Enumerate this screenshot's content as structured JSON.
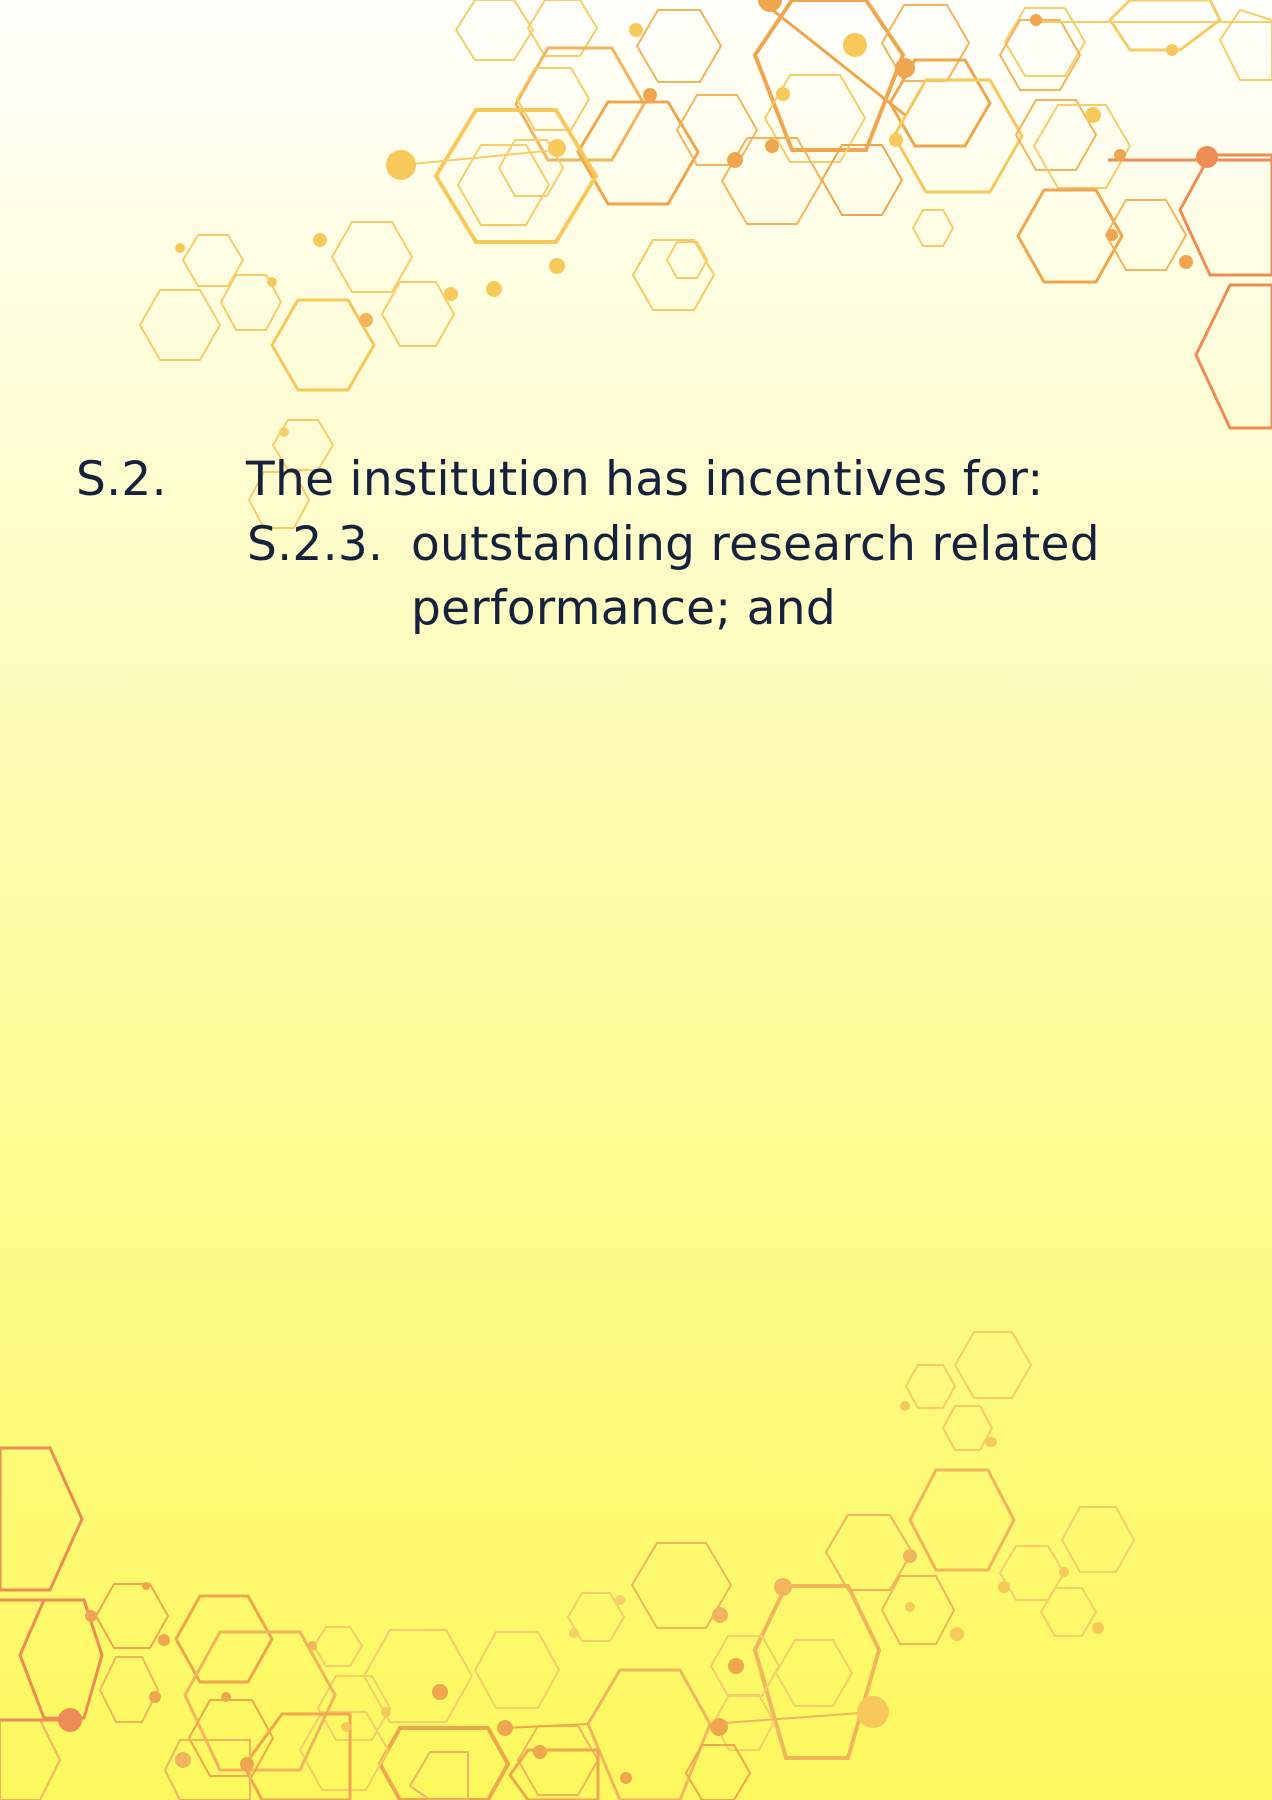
{
  "page": {
    "background_top": "#fffffb",
    "background_bottom": "#fef85e",
    "text_color": "#16223d",
    "accent_colors": [
      "#f7c95a",
      "#f0a64e",
      "#ee8c55"
    ]
  },
  "decoration": {
    "top_right": "hexagon-molecule-pattern",
    "bottom": "hexagon-molecule-pattern"
  },
  "standard": {
    "number": "S.2.",
    "heading": "The institution has incentives for:",
    "item": {
      "number": "S.2.3.",
      "text": "outstanding research related performance; and"
    }
  }
}
